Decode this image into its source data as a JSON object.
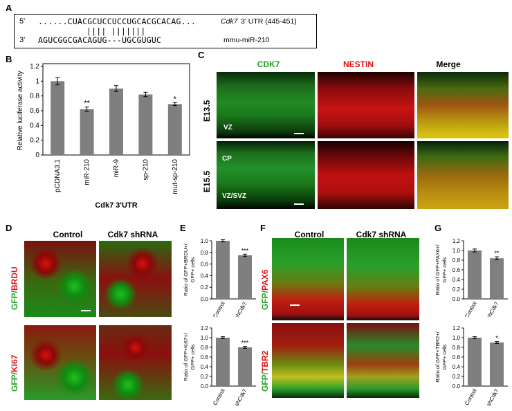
{
  "panels": {
    "A": "A",
    "B": "B",
    "C": "C",
    "D": "D",
    "E": "E",
    "F": "F",
    "G": "G"
  },
  "panelA": {
    "top_prefix": "5'",
    "top_seq": "......CUACGCUCCUCCUGCACGCACAG...",
    "top_gene": "Cdk7",
    "top_suffix": "3' UTR (445-451)",
    "pairs": "|||| |||||||",
    "bottom_prefix": "3'",
    "bottom_seq": "AGUCGGCGACAGUG---UGCGUGUC",
    "bottom_suffix": "mmu-miR-210"
  },
  "panelC": {
    "col_cdk7": "CDK7",
    "col_nestin": "NESTIN",
    "col_merge": "Merge",
    "row1": "E13.5",
    "row2": "E15.5",
    "vz": "VZ",
    "cp": "CP",
    "vzsvz": "VZ/SVZ",
    "colors": {
      "cdk7": "#22a022",
      "nestin": "#e01010"
    }
  },
  "panelD": {
    "control": "Control",
    "shrna": "Cdk7 shRNA",
    "row1_green": "GFP/",
    "row1_red": "BRDU",
    "row2_green": "GFP/",
    "row2_red": "KI67"
  },
  "panelF": {
    "control": "Control",
    "shrna": "Cdk7 shRNA",
    "row1_green": "GFP/",
    "row1_red": "PAX6",
    "row2_green": "GFP/",
    "row2_red": "TBR2"
  },
  "chart_data": [
    {
      "id": "B",
      "type": "bar",
      "categories": [
        "pCDNA3.1",
        "miR-210",
        "miR-9",
        "sp-210",
        "mut-sp-210"
      ],
      "values": [
        1.0,
        0.62,
        0.9,
        0.82,
        0.69
      ],
      "errors": [
        0.05,
        0.03,
        0.04,
        0.03,
        0.02
      ],
      "significance": [
        "",
        "**",
        "",
        "",
        "*"
      ],
      "ylabel": "Relative luciferase activity",
      "xlabel": "Cdk7 3'UTR",
      "ylim": [
        0,
        1.2
      ],
      "yticks": [
        "0",
        "0.2",
        "0.4",
        "0.6",
        "0.8",
        "1",
        "1.2"
      ],
      "ytickvals": [
        0,
        0.2,
        0.4,
        0.6,
        0.8,
        1,
        1.2
      ]
    },
    {
      "id": "E1",
      "type": "bar",
      "categories": [
        "Control",
        "shCdk7"
      ],
      "values": [
        1.0,
        0.75
      ],
      "errors": [
        0.02,
        0.02
      ],
      "significance": [
        "",
        "***"
      ],
      "ylabel": "Ratio of GFP+BRDU+/ GFP+ cells",
      "ylim": [
        0,
        1.0
      ],
      "yticks": [
        "0.0",
        "0.2",
        "0.4",
        "0.6",
        "0.8",
        "1.0"
      ],
      "ytickvals": [
        0,
        0.2,
        0.4,
        0.6,
        0.8,
        1.0
      ]
    },
    {
      "id": "E2",
      "type": "bar",
      "categories": [
        "Control",
        "shCdk7"
      ],
      "values": [
        1.0,
        0.8
      ],
      "errors": [
        0.02,
        0.02
      ],
      "significance": [
        "",
        "***"
      ],
      "ylabel": "Ratio of GFP+Ki67+/ GFP+ cells",
      "ylim": [
        0,
        1.2
      ],
      "yticks": [
        "0.0",
        "0.2",
        "0.4",
        "0.6",
        "0.8",
        "1.0",
        "1.2"
      ],
      "ytickvals": [
        0,
        0.2,
        0.4,
        0.6,
        0.8,
        1.0,
        1.2
      ]
    },
    {
      "id": "G1",
      "type": "bar",
      "categories": [
        "Control",
        "shCdk7"
      ],
      "values": [
        1.0,
        0.84
      ],
      "errors": [
        0.03,
        0.03
      ],
      "significance": [
        "",
        "**"
      ],
      "ylabel": "Ratio of GFP+PAX6+/ GFP+ cells",
      "ylim": [
        0,
        1.2
      ],
      "yticks": [
        "0.0",
        "0.2",
        "0.4",
        "0.6",
        "0.8",
        "1.0",
        "1.2"
      ],
      "ytickvals": [
        0,
        0.2,
        0.4,
        0.6,
        0.8,
        1.0,
        1.2
      ]
    },
    {
      "id": "G2",
      "type": "bar",
      "categories": [
        "Control",
        "shCdk7"
      ],
      "values": [
        1.0,
        0.9
      ],
      "errors": [
        0.02,
        0.02
      ],
      "significance": [
        "",
        "*"
      ],
      "ylabel": "Ratio of GFP+TBR2+/ GFP+ cells",
      "ylim": [
        0,
        1.2
      ],
      "yticks": [
        "0.0",
        "0.2",
        "0.4",
        "0.6",
        "0.8",
        "1.0",
        "1.2"
      ],
      "ytickvals": [
        0,
        0.2,
        0.4,
        0.6,
        0.8,
        1.0,
        1.2
      ]
    }
  ]
}
